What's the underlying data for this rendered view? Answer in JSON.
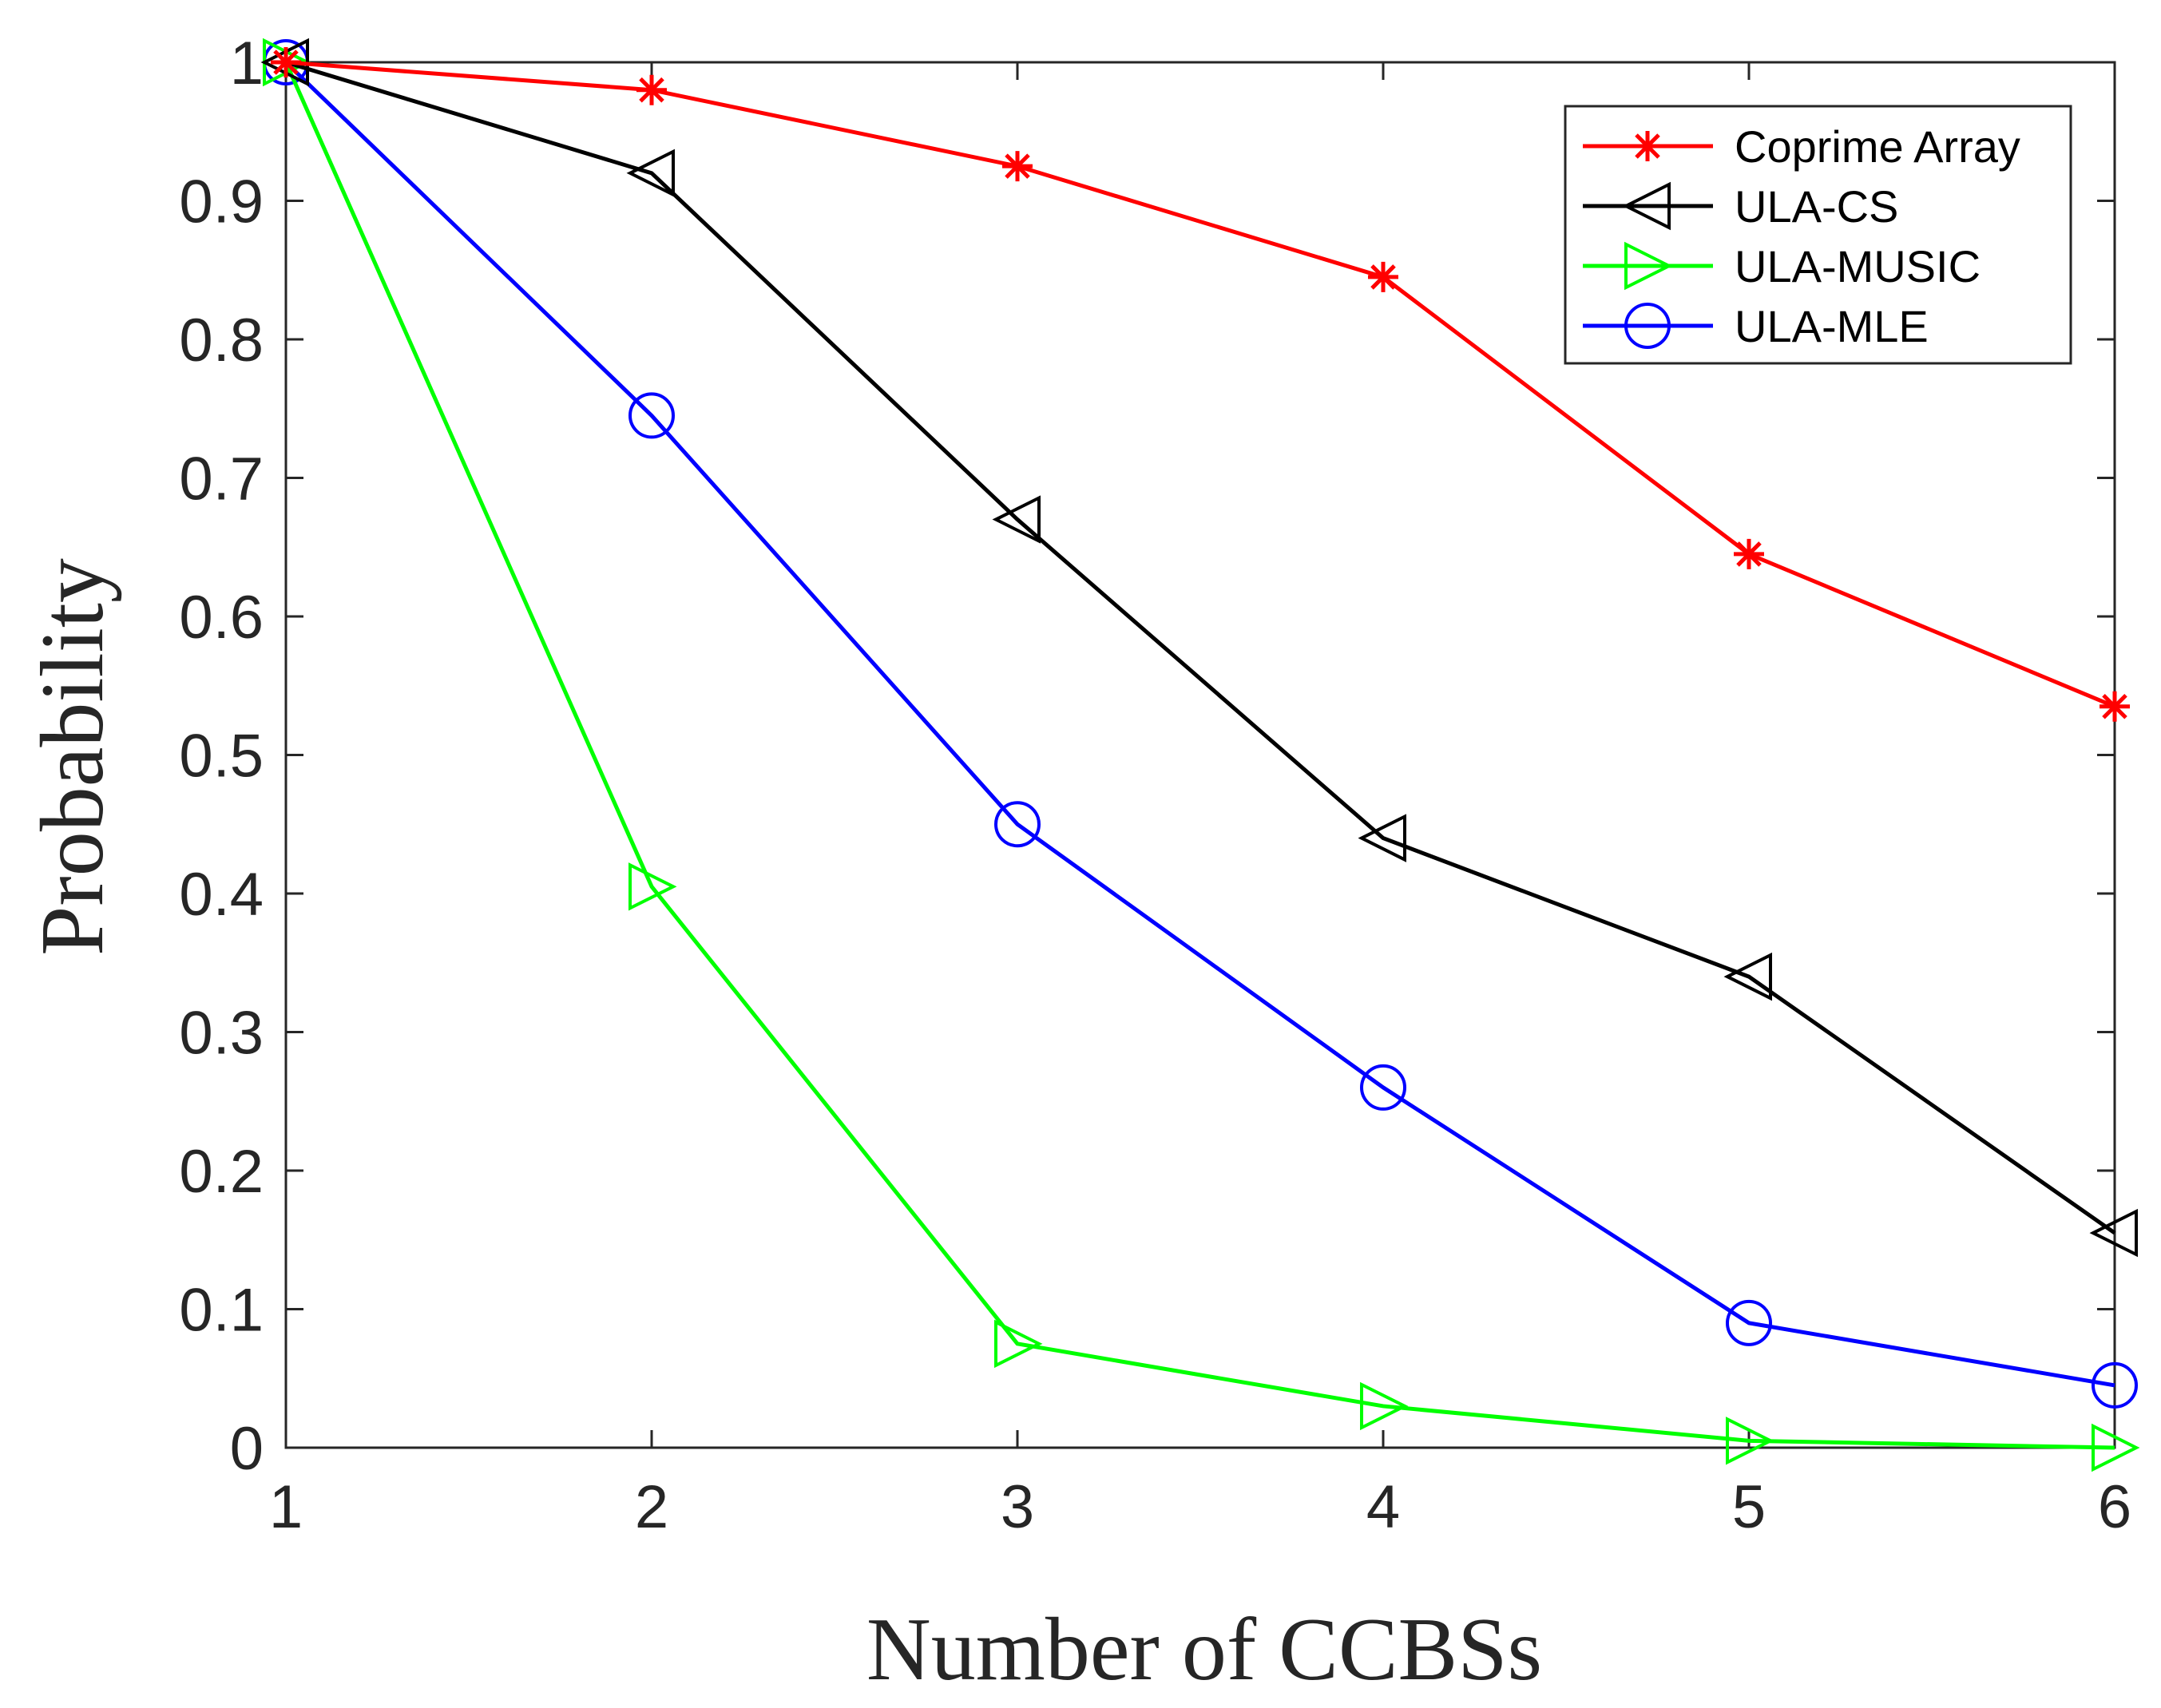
{
  "chart_data": {
    "type": "line",
    "title": "",
    "xlabel": "Number of CCBSs",
    "ylabel": "Probability",
    "x": [
      1,
      2,
      3,
      4,
      5,
      6
    ],
    "xlim": [
      1,
      6
    ],
    "ylim": [
      0,
      1
    ],
    "xticks": [
      "1",
      "2",
      "3",
      "4",
      "5",
      "6"
    ],
    "yticks": [
      "0",
      "0.1",
      "0.2",
      "0.3",
      "0.4",
      "0.5",
      "0.6",
      "0.7",
      "0.8",
      "0.9",
      "1"
    ],
    "grid": false,
    "legend_position": "top-right",
    "series": [
      {
        "name": "Coprime Array",
        "color": "#ff0000",
        "marker": "asterisk",
        "values": [
          1.0,
          0.98,
          0.925,
          0.845,
          0.645,
          0.535
        ]
      },
      {
        "name": "ULA-CS",
        "color": "#000000",
        "marker": "triangle-left",
        "values": [
          1.0,
          0.92,
          0.67,
          0.44,
          0.34,
          0.155
        ]
      },
      {
        "name": "ULA-MUSIC",
        "color": "#00ff00",
        "marker": "triangle-right",
        "values": [
          1.0,
          0.405,
          0.075,
          0.03,
          0.005,
          0.0
        ]
      },
      {
        "name": "ULA-MLE",
        "color": "#0000ff",
        "marker": "circle",
        "values": [
          1.0,
          0.745,
          0.45,
          0.26,
          0.09,
          0.045
        ]
      }
    ]
  }
}
